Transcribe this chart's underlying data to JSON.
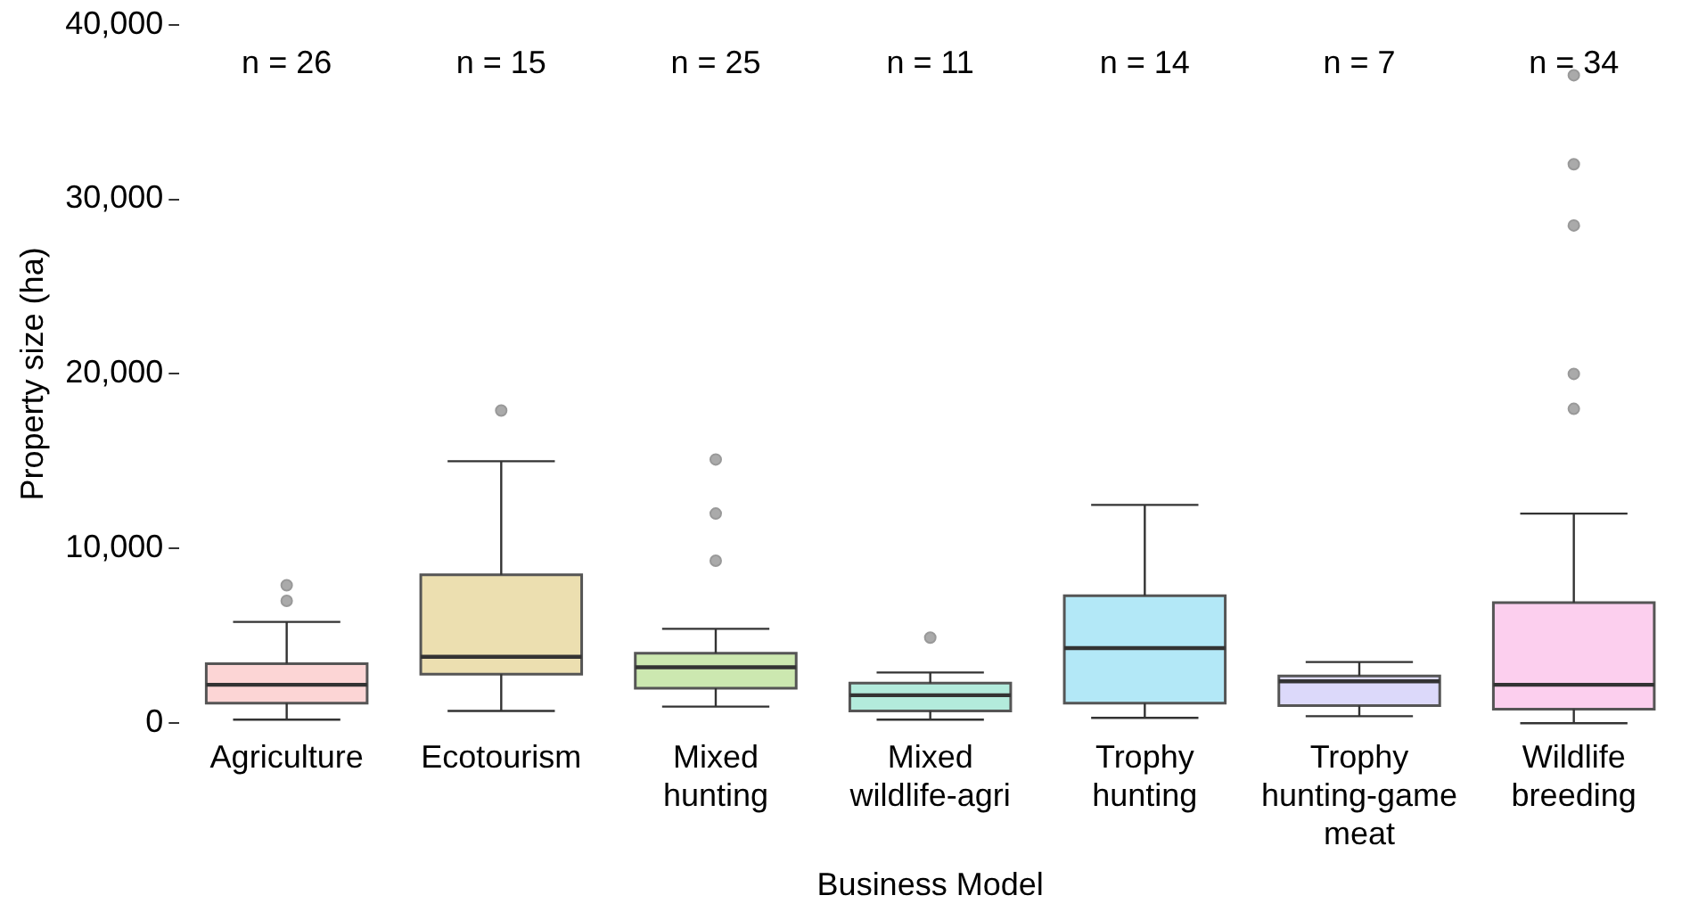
{
  "chart_data": {
    "type": "box",
    "xlabel": "Business Model",
    "ylabel": "Property size (ha)",
    "categories": [
      "Agriculture",
      "Ecotourism",
      "Mixed hunting",
      "Mixed wildlife-agri",
      "Trophy hunting",
      "Trophy hunting-game meat",
      "Wildlife breeding"
    ],
    "colors": [
      "#fcd5d5",
      "#ecdfb0",
      "#cce8b0",
      "#b3ebdc",
      "#b3e8f7",
      "#dcd9fa",
      "#fccfee"
    ],
    "boxes": [
      {
        "low": 200,
        "q1": 1150,
        "median": 2200,
        "q3": 3400,
        "high": 5800,
        "outliers": [
          7000,
          7900
        ]
      },
      {
        "low": 700,
        "q1": 2800,
        "median": 3800,
        "q3": 8500,
        "high": 15000,
        "outliers": [
          17900
        ]
      },
      {
        "low": 950,
        "q1": 2000,
        "median": 3200,
        "q3": 4000,
        "high": 5400,
        "outliers": [
          9300,
          12000,
          15100
        ]
      },
      {
        "low": 200,
        "q1": 700,
        "median": 1600,
        "q3": 2300,
        "high": 2900,
        "outliers": [
          4900
        ]
      },
      {
        "low": 300,
        "q1": 1150,
        "median": 4300,
        "q3": 7300,
        "high": 12500
      },
      {
        "low": 400,
        "q1": 1000,
        "median": 2400,
        "q3": 2700,
        "high": 3500
      },
      {
        "low": 0,
        "q1": 800,
        "median": 2200,
        "q3": 6900,
        "high": 12000,
        "outliers": [
          18000,
          20000,
          28500,
          32000,
          37100
        ]
      }
    ],
    "ylim": [
      0,
      40000
    ],
    "yticks": [
      {
        "value": 0,
        "label": "0"
      },
      {
        "value": 10000,
        "label": "10,000"
      },
      {
        "value": 20000,
        "label": "20,000"
      },
      {
        "value": 30000,
        "label": "30,000"
      },
      {
        "value": 40000,
        "label": "40,000"
      }
    ],
    "annotations": [
      "n = 26",
      "n = 15",
      "n = 25",
      "n = 11",
      "n = 14",
      "n = 7",
      "n = 34"
    ],
    "grid": false,
    "legend": false
  }
}
